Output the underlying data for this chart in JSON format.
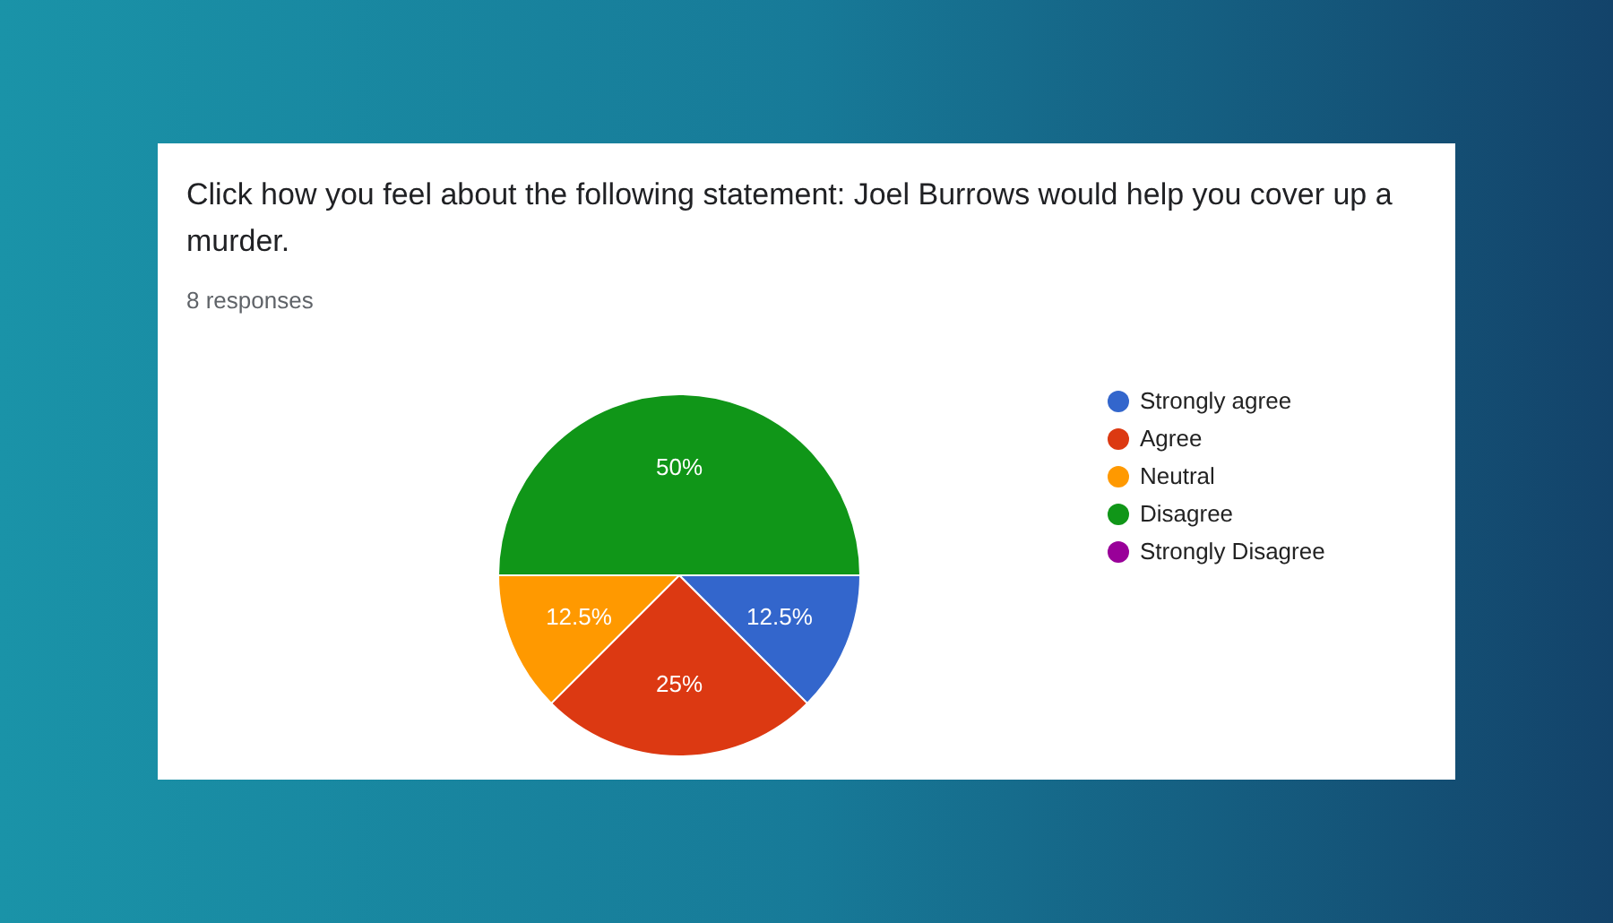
{
  "chart_data": {
    "type": "pie",
    "title": "Click how you feel about the following statement: Joel Burrows would help you cover up a murder.",
    "subtitle": "8 responses",
    "categories": [
      "Strongly agree",
      "Agree",
      "Neutral",
      "Disagree",
      "Strongly Disagree"
    ],
    "values": [
      12.5,
      25,
      12.5,
      50,
      0
    ],
    "colors": [
      "#3366cc",
      "#dc3912",
      "#ff9900",
      "#109618",
      "#990099"
    ],
    "value_labels": [
      "12.5%",
      "25%",
      "12.5%",
      "50%",
      null
    ],
    "legend": "right"
  }
}
